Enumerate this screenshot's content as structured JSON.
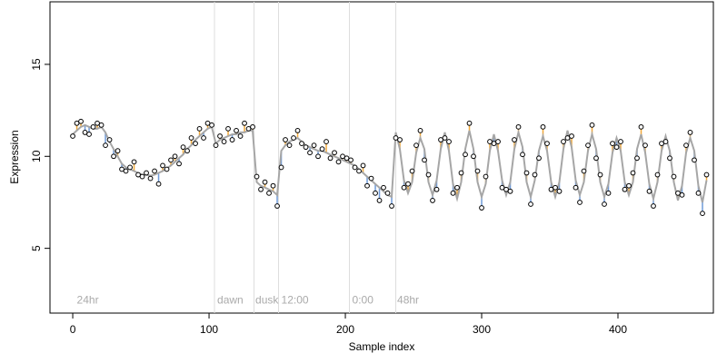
{
  "chart_data": {
    "type": "scatter",
    "xlabel": "Sample index",
    "ylabel": "Expression",
    "xlim": [
      -16.7,
      470
    ],
    "ylim": [
      1.48,
      18.4
    ],
    "xticks": [
      0,
      100,
      200,
      300,
      400
    ],
    "yticks": [
      5,
      10,
      15
    ],
    "vlines": [
      104,
      133,
      151,
      203,
      237
    ],
    "annotations": [
      {
        "text": "24hr",
        "x": 3,
        "y": 2
      },
      {
        "text": "dawn",
        "x": 106,
        "y": 2
      },
      {
        "text": "dusk",
        "x": 134,
        "y": 2
      },
      {
        "text": "12:00",
        "x": 153,
        "y": 2
      },
      {
        "text": "0:00",
        "x": 205,
        "y": 2
      },
      {
        "text": "48hr",
        "x": 238,
        "y": 2
      }
    ],
    "point_color": "#000000",
    "line_color": "#a6a6a6",
    "above_color": "#f0a83a",
    "below_color": "#6e9ad8",
    "x": [
      0,
      3,
      6,
      9,
      12,
      15,
      18,
      21,
      24,
      27,
      30,
      33,
      36,
      39,
      42,
      45,
      48,
      51,
      54,
      57,
      60,
      63,
      66,
      69,
      72,
      75,
      78,
      81,
      84,
      87,
      90,
      93,
      96,
      99,
      102,
      105,
      108,
      111,
      114,
      117,
      120,
      123,
      126,
      129,
      132,
      135,
      138,
      141,
      144,
      147,
      150,
      153,
      156,
      159,
      162,
      165,
      168,
      171,
      174,
      177,
      180,
      183,
      186,
      189,
      192,
      195,
      198,
      201,
      204,
      207,
      210,
      213,
      216,
      219,
      222,
      225,
      228,
      231,
      234,
      237,
      240,
      243,
      246,
      249,
      252,
      255,
      258,
      261,
      264,
      267,
      270,
      273,
      276,
      279,
      282,
      285,
      288,
      291,
      294,
      297,
      300,
      303,
      306,
      309,
      312,
      315,
      318,
      321,
      324,
      327,
      330,
      333,
      336,
      339,
      342,
      345,
      348,
      351,
      354,
      357,
      360,
      363,
      366,
      369,
      372,
      375,
      378,
      381,
      384,
      387,
      390,
      393,
      396,
      399,
      402,
      405,
      408,
      411,
      414,
      417,
      420,
      423,
      426,
      429,
      432,
      435,
      438,
      441,
      444,
      447,
      450,
      453,
      456,
      459,
      462,
      465
    ],
    "y": [
      11.1,
      11.8,
      11.9,
      11.3,
      11.2,
      11.6,
      11.8,
      11.7,
      10.6,
      10.9,
      10.0,
      10.3,
      9.3,
      9.2,
      9.4,
      9.7,
      9.0,
      8.9,
      9.1,
      8.8,
      9.2,
      8.5,
      9.5,
      9.3,
      9.8,
      10.0,
      9.6,
      10.5,
      10.3,
      11.0,
      10.7,
      11.5,
      11.0,
      11.8,
      11.7,
      10.6,
      11.1,
      10.8,
      11.5,
      10.9,
      11.4,
      11.1,
      11.8,
      11.5,
      11.6,
      8.9,
      8.2,
      8.6,
      8.0,
      8.4,
      7.3,
      9.4,
      10.9,
      10.6,
      11.0,
      11.4,
      10.7,
      10.5,
      10.2,
      10.6,
      10.0,
      10.4,
      10.8,
      9.9,
      10.2,
      9.7,
      10.0,
      9.9,
      9.8,
      9.4,
      9.2,
      9.5,
      8.4,
      8.8,
      8.0,
      7.6,
      8.3,
      8.0,
      7.3,
      11.0,
      10.9,
      8.3,
      8.5,
      9.2,
      10.6,
      11.4,
      9.8,
      9.0,
      7.6,
      8.2,
      10.9,
      11.0,
      10.8,
      8.0,
      8.3,
      9.1,
      10.1,
      11.8,
      10.0,
      9.2,
      7.2,
      8.9,
      10.8,
      10.7,
      10.8,
      8.3,
      8.2,
      8.1,
      10.9,
      11.6,
      10.1,
      9.1,
      7.4,
      9.0,
      9.9,
      11.6,
      10.7,
      8.2,
      8.3,
      8.1,
      10.8,
      11.0,
      11.1,
      8.3,
      7.5,
      9.2,
      10.6,
      11.7,
      9.9,
      9.0,
      7.4,
      8.0,
      10.7,
      10.5,
      10.8,
      8.2,
      8.4,
      9.1,
      9.9,
      11.6,
      10.6,
      8.1,
      7.3,
      9.0,
      10.7,
      10.8,
      9.9,
      8.9,
      8.0,
      7.9,
      10.6,
      11.3,
      9.8,
      8.0,
      6.9,
      9.0
    ],
    "fit": [
      11.2,
      11.4,
      11.6,
      11.7,
      11.6,
      11.5,
      11.5,
      11.6,
      11.3,
      10.8,
      10.4,
      10.0,
      9.6,
      9.4,
      9.3,
      9.2,
      9.1,
      9.0,
      9.0,
      8.95,
      9.0,
      9.1,
      9.2,
      9.35,
      9.5,
      9.7,
      9.9,
      10.1,
      10.4,
      10.6,
      10.9,
      11.1,
      11.3,
      11.5,
      11.6,
      10.7,
      10.9,
      11.0,
      11.1,
      11.2,
      11.2,
      11.3,
      11.3,
      11.4,
      11.4,
      8.6,
      8.4,
      8.3,
      8.2,
      8.1,
      7.9,
      10.3,
      10.6,
      10.8,
      10.9,
      11.0,
      10.8,
      10.6,
      10.5,
      10.4,
      10.3,
      10.3,
      10.2,
      10.1,
      10.0,
      9.9,
      9.8,
      9.7,
      9.6,
      9.5,
      9.3,
      9.1,
      8.9,
      8.7,
      8.5,
      8.3,
      8.1,
      7.9,
      7.8,
      11.3,
      10.4,
      8.7,
      8.0,
      8.6,
      10.2,
      11.0,
      10.4,
      8.6,
      7.9,
      8.7,
      10.4,
      11.3,
      10.3,
      8.5,
      7.7,
      8.6,
      10.4,
      11.4,
      10.4,
      8.6,
      7.8,
      8.5,
      10.3,
      11.2,
      10.3,
      8.7,
      7.9,
      8.6,
      10.4,
      11.3,
      10.5,
      8.6,
      7.8,
      8.7,
      10.3,
      11.1,
      10.3,
      8.6,
      7.8,
      8.6,
      10.4,
      11.4,
      10.5,
      8.7,
      7.9,
      8.6,
      10.3,
      11.2,
      10.4,
      8.6,
      7.8,
      8.5,
      10.2,
      11.0,
      10.3,
      8.6,
      7.9,
      8.6,
      10.4,
      11.2,
      10.2,
      8.5,
      7.7,
      8.6,
      10.3,
      11.1,
      10.3,
      8.6,
      7.6,
      8.4,
      10.2,
      11.0,
      10.3,
      8.4,
      7.5,
      8.7
    ]
  }
}
